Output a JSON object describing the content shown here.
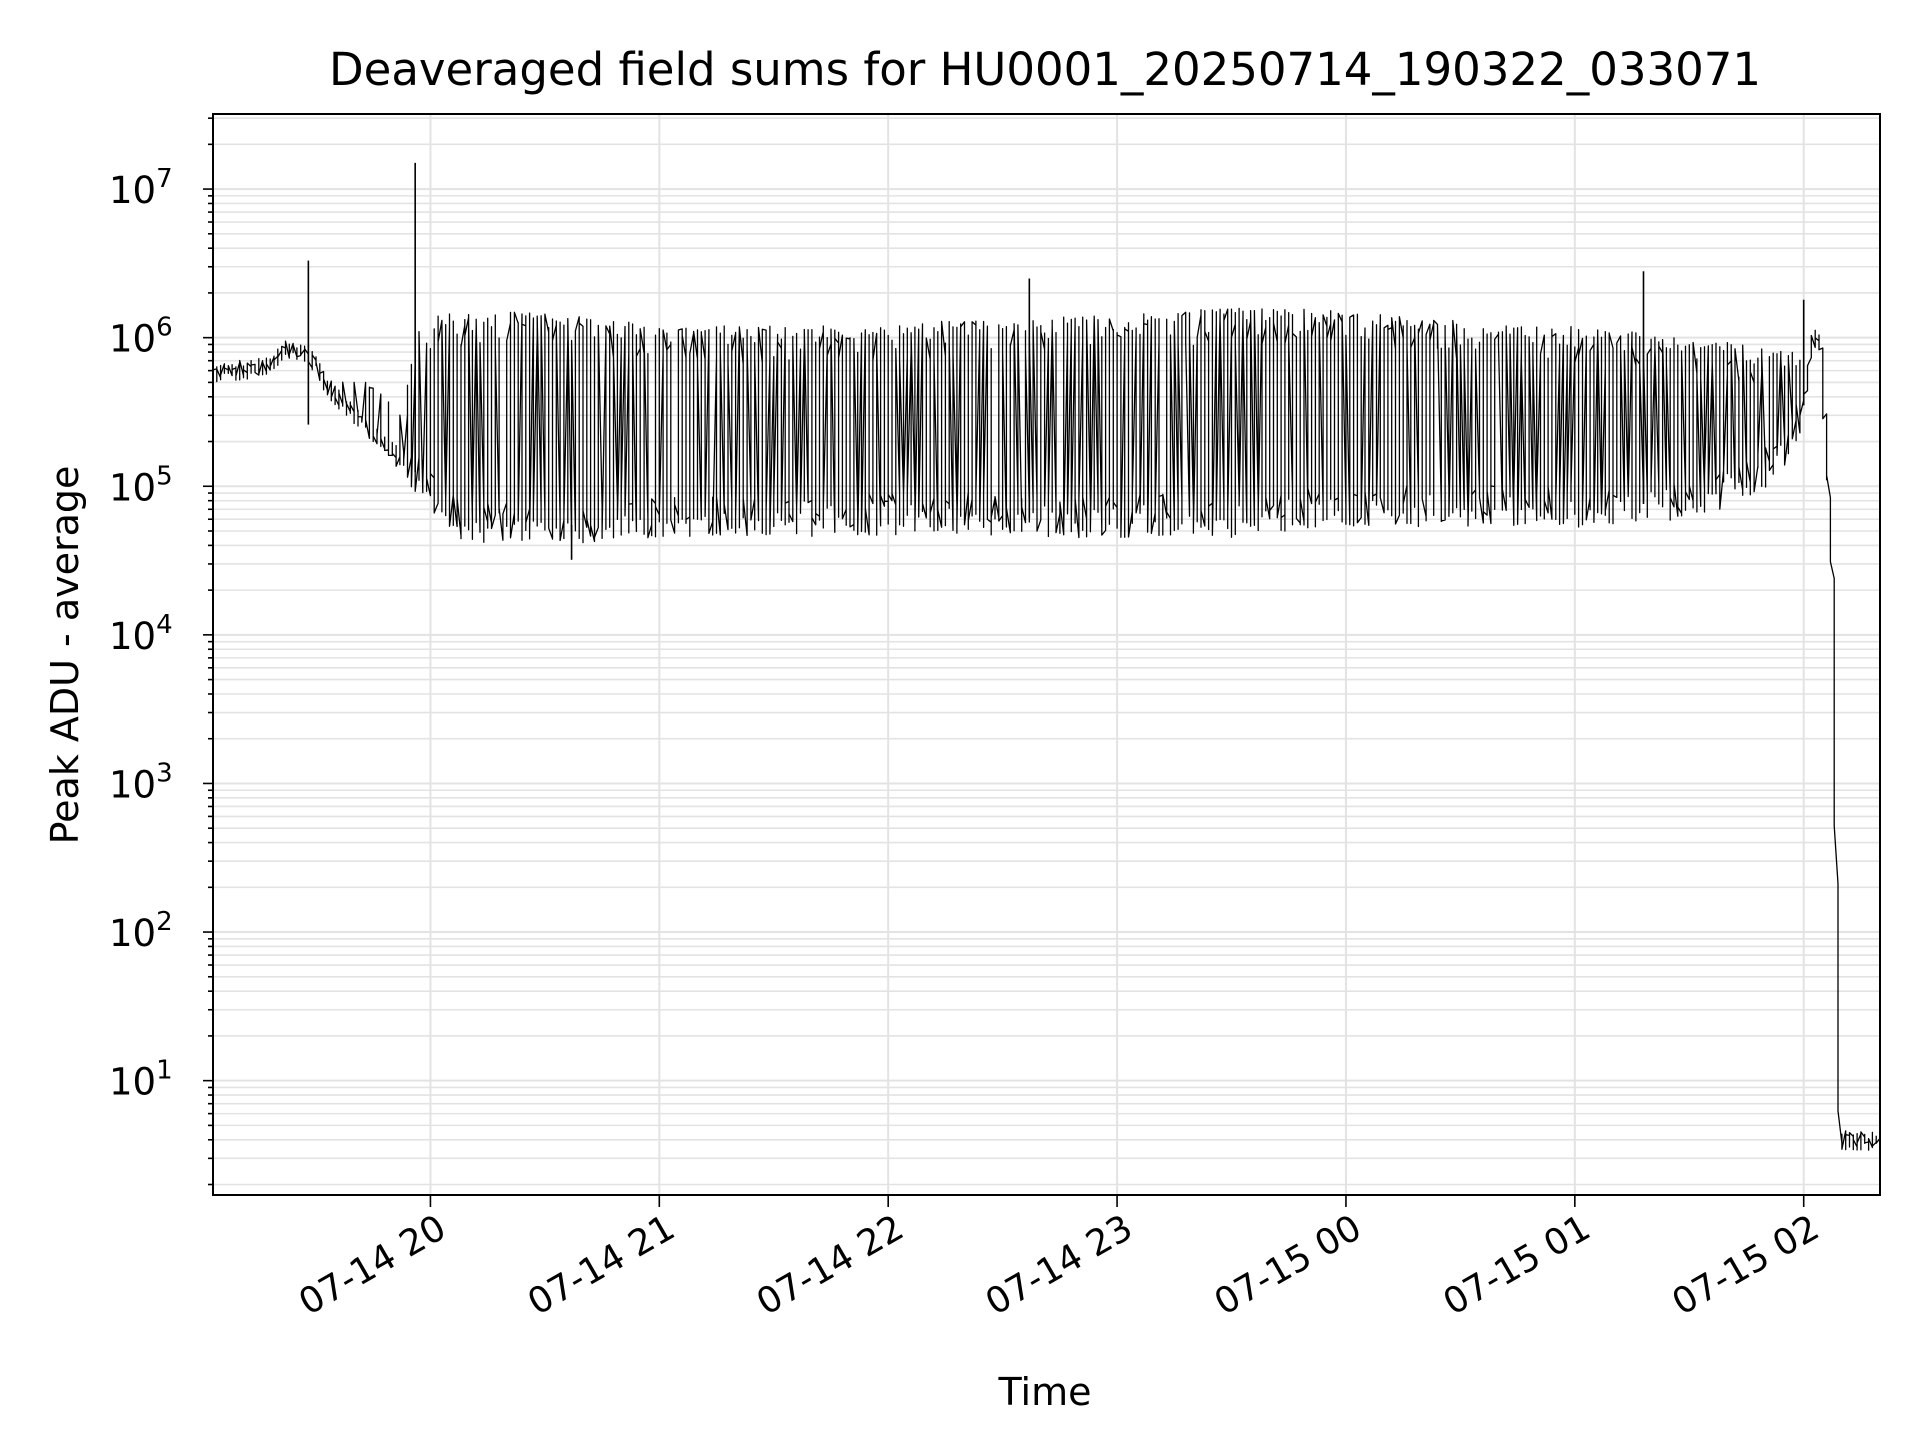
{
  "chart_data": {
    "type": "line",
    "title": "Deaveraged field sums for HU0001_20250714_190322_033071",
    "xlabel": "Time",
    "ylabel": "Peak ADU - average",
    "yscale": "log",
    "ylim": [
      1.7,
      32000000
    ],
    "xlim": [
      "2025-07-14 19:03",
      "2025-07-15 02:20"
    ],
    "grid": true,
    "line_color": "#000000",
    "x_tick_labels": [
      "07-14 20",
      "07-14 21",
      "07-14 22",
      "07-14 23",
      "07-15 00",
      "07-15 01",
      "07-15 02"
    ],
    "x_tick_times": [
      "2025-07-14 20:00",
      "2025-07-14 21:00",
      "2025-07-14 22:00",
      "2025-07-14 23:00",
      "2025-07-15 00:00",
      "2025-07-15 01:00",
      "2025-07-15 02:00"
    ],
    "y_ticks": [
      {
        "base": "10",
        "exp": "1",
        "value": 10
      },
      {
        "base": "10",
        "exp": "2",
        "value": 100
      },
      {
        "base": "10",
        "exp": "3",
        "value": 1000
      },
      {
        "base": "10",
        "exp": "4",
        "value": 10000
      },
      {
        "base": "10",
        "exp": "5",
        "value": 100000
      },
      {
        "base": "10",
        "exp": "6",
        "value": 1000000
      },
      {
        "base": "10",
        "exp": "7",
        "value": 10000000
      }
    ],
    "series": [
      {
        "x": [
          "2025-07-14 19:03",
          "2025-07-14 19:08",
          "2025-07-14 19:13",
          "2025-07-14 19:18",
          "2025-07-14 19:23",
          "2025-07-14 19:28",
          "2025-07-14 19:33",
          "2025-07-14 19:38",
          "2025-07-14 19:43",
          "2025-07-14 19:48",
          "2025-07-14 19:53",
          "2025-07-14 19:58",
          "2025-07-14 20:03",
          "2025-07-14 20:08",
          "2025-07-14 20:13",
          "2025-07-14 20:20",
          "2025-07-14 20:30",
          "2025-07-14 20:40",
          "2025-07-14 20:50",
          "2025-07-14 21:00",
          "2025-07-14 21:15",
          "2025-07-14 21:30",
          "2025-07-14 21:45",
          "2025-07-14 22:00",
          "2025-07-14 22:15",
          "2025-07-14 22:30",
          "2025-07-14 22:45",
          "2025-07-14 23:00",
          "2025-07-14 23:15",
          "2025-07-14 23:30",
          "2025-07-14 23:45",
          "2025-07-15 00:00",
          "2025-07-15 00:15",
          "2025-07-15 00:30",
          "2025-07-15 00:45",
          "2025-07-15 01:00",
          "2025-07-15 01:15",
          "2025-07-15 01:30",
          "2025-07-15 01:45",
          "2025-07-15 01:55",
          "2025-07-15 02:00",
          "2025-07-15 02:03",
          "2025-07-15 02:05",
          "2025-07-15 02:08",
          "2025-07-15 02:10",
          "2025-07-15 02:12",
          "2025-07-15 02:20"
        ],
        "y": [
          560000,
          600000,
          620000,
          650000,
          850000,
          800000,
          500000,
          350000,
          260000,
          200000,
          150000,
          110000,
          80000,
          60000,
          55000,
          55000,
          55000,
          55000,
          60000,
          60000,
          62000,
          62000,
          60000,
          62000,
          65000,
          62000,
          60000,
          60000,
          62000,
          60000,
          65000,
          70000,
          72000,
          70000,
          72000,
          70000,
          75000,
          80000,
          100000,
          150000,
          350000,
          1000000,
          900000,
          30000,
          4,
          4,
          4
        ],
        "envelope_upper": [
          600000,
          650000,
          700000,
          700000,
          900000,
          850000,
          700000,
          500000,
          500000,
          400000,
          300000,
          1500000,
          1500000,
          1500000,
          1500000,
          1500000,
          1500000,
          1400000,
          1300000,
          1200000,
          1200000,
          1200000,
          1200000,
          1200000,
          1300000,
          1300000,
          1400000,
          1400000,
          1500000,
          1600000,
          1600000,
          1500000,
          1400000,
          1300000,
          1200000,
          1200000,
          1100000,
          1000000,
          900000,
          800000,
          1000000,
          1100000,
          900000,
          30000,
          4,
          4,
          4
        ],
        "spikes": [
          {
            "x": "2025-07-14 19:28",
            "y": 3300000
          },
          {
            "x": "2025-07-14 19:56",
            "y": 15000000
          },
          {
            "x": "2025-07-14 22:37",
            "y": 2500000
          },
          {
            "x": "2025-07-15 01:18",
            "y": 2800000
          },
          {
            "x": "2025-07-15 02:00",
            "y": 1800000
          },
          {
            "x": "2025-07-14 19:28",
            "y": 260000
          },
          {
            "x": "2025-07-14 20:37",
            "y": 32000
          }
        ]
      }
    ]
  }
}
